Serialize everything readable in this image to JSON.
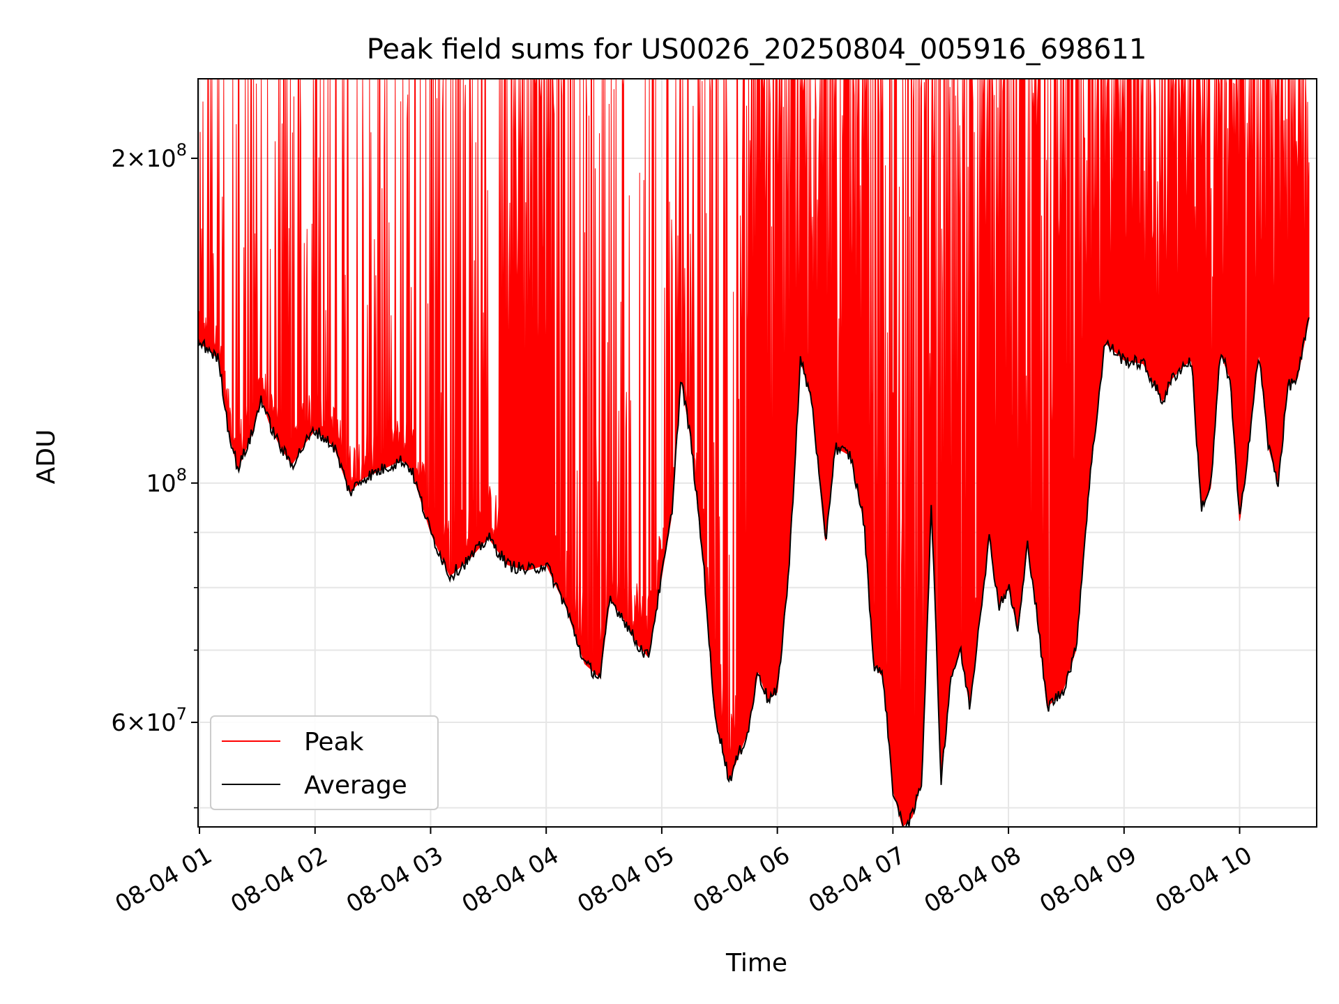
{
  "chart_data": {
    "type": "line",
    "title": "Peak field sums for US0026_20250804_005916_698611",
    "xlabel": "Time",
    "ylabel": "ADU",
    "yscale": "log",
    "ylim": [
      48000000,
      237000000
    ],
    "xlim": [
      "2025-08-04 00:59:16",
      "2025-08-04 10:40:00"
    ],
    "grid": true,
    "legend": {
      "placement": "lower-left"
    },
    "x_ticks": [
      {
        "label": "08-04 01",
        "time": "2025-08-04 01:00"
      },
      {
        "label": "08-04 02",
        "time": "2025-08-04 02:00"
      },
      {
        "label": "08-04 03",
        "time": "2025-08-04 03:00"
      },
      {
        "label": "08-04 04",
        "time": "2025-08-04 04:00"
      },
      {
        "label": "08-04 05",
        "time": "2025-08-04 05:00"
      },
      {
        "label": "08-04 06",
        "time": "2025-08-04 06:00"
      },
      {
        "label": "08-04 07",
        "time": "2025-08-04 07:00"
      },
      {
        "label": "08-04 08",
        "time": "2025-08-04 08:00"
      },
      {
        "label": "08-04 09",
        "time": "2025-08-04 09:00"
      },
      {
        "label": "08-04 10",
        "time": "2025-08-04 10:00"
      }
    ],
    "y_ticks": [
      {
        "value": 60000000,
        "mantissa": "6",
        "exponent": "7"
      },
      {
        "value": 100000000,
        "mantissa": "",
        "exponent": "8"
      },
      {
        "value": 200000000,
        "mantissa": "2",
        "exponent": "8"
      }
    ],
    "y_minor_ticks": [
      50000000,
      70000000,
      80000000,
      90000000,
      300000000
    ],
    "series": [
      {
        "name": "Peak",
        "color": "#ff0000",
        "note_values": "envelope of the peak trace: rises from the average to the plot top (clipped near 2.37e8) in dense spikes",
        "x": [
          "2025-08-04 01:00",
          "2025-08-04 01:15",
          "2025-08-04 01:30",
          "2025-08-04 01:45",
          "2025-08-04 02:00",
          "2025-08-04 02:30",
          "2025-08-04 03:00",
          "2025-08-04 03:30",
          "2025-08-04 04:00",
          "2025-08-04 04:30",
          "2025-08-04 05:00",
          "2025-08-04 05:30",
          "2025-08-04 06:00",
          "2025-08-04 06:30",
          "2025-08-04 07:00",
          "2025-08-04 07:30",
          "2025-08-04 08:00",
          "2025-08-04 08:30",
          "2025-08-04 09:00",
          "2025-08-04 09:30",
          "2025-08-04 10:00",
          "2025-08-04 10:30"
        ],
        "values": [
          237000000,
          237000000,
          237000000,
          210000000,
          237000000,
          215000000,
          237000000,
          237000000,
          237000000,
          220000000,
          237000000,
          237000000,
          237000000,
          237000000,
          237000000,
          237000000,
          237000000,
          237000000,
          237000000,
          237000000,
          237000000,
          237000000
        ]
      },
      {
        "name": "Average",
        "color": "#000000",
        "x": [
          "2025-08-04 00:59:16",
          "2025-08-04 01:05",
          "2025-08-04 01:10",
          "2025-08-04 01:15",
          "2025-08-04 01:20",
          "2025-08-04 01:28",
          "2025-08-04 01:32",
          "2025-08-04 01:36",
          "2025-08-04 01:42",
          "2025-08-04 01:48",
          "2025-08-04 01:55",
          "2025-08-04 02:00",
          "2025-08-04 02:10",
          "2025-08-04 02:18",
          "2025-08-04 02:25",
          "2025-08-04 02:35",
          "2025-08-04 02:45",
          "2025-08-04 02:50",
          "2025-08-04 03:00",
          "2025-08-04 03:10",
          "2025-08-04 03:20",
          "2025-08-04 03:30",
          "2025-08-04 03:40",
          "2025-08-04 03:50",
          "2025-08-04 04:00",
          "2025-08-04 04:10",
          "2025-08-04 04:20",
          "2025-08-04 04:28",
          "2025-08-04 04:33",
          "2025-08-04 04:40",
          "2025-08-04 04:47",
          "2025-08-04 04:53",
          "2025-08-04 05:00",
          "2025-08-04 05:05",
          "2025-08-04 05:10",
          "2025-08-04 05:15",
          "2025-08-04 05:22",
          "2025-08-04 05:27",
          "2025-08-04 05:35",
          "2025-08-04 05:40",
          "2025-08-04 05:45",
          "2025-08-04 05:50",
          "2025-08-04 05:55",
          "2025-08-04 06:00",
          "2025-08-04 06:06",
          "2025-08-04 06:12",
          "2025-08-04 06:18",
          "2025-08-04 06:25",
          "2025-08-04 06:30",
          "2025-08-04 06:38",
          "2025-08-04 06:45",
          "2025-08-04 06:50",
          "2025-08-04 06:55",
          "2025-08-04 07:00",
          "2025-08-04 07:05",
          "2025-08-04 07:10",
          "2025-08-04 07:15",
          "2025-08-04 07:20",
          "2025-08-04 07:25",
          "2025-08-04 07:30",
          "2025-08-04 07:35",
          "2025-08-04 07:40",
          "2025-08-04 07:45",
          "2025-08-04 07:50",
          "2025-08-04 07:55",
          "2025-08-04 08:00",
          "2025-08-04 08:05",
          "2025-08-04 08:10",
          "2025-08-04 08:15",
          "2025-08-04 08:20",
          "2025-08-04 08:28",
          "2025-08-04 08:35",
          "2025-08-04 08:42",
          "2025-08-04 08:50",
          "2025-08-04 09:00",
          "2025-08-04 09:10",
          "2025-08-04 09:15",
          "2025-08-04 09:20",
          "2025-08-04 09:25",
          "2025-08-04 09:30",
          "2025-08-04 09:35",
          "2025-08-04 09:40",
          "2025-08-04 09:45",
          "2025-08-04 09:50",
          "2025-08-04 09:55",
          "2025-08-04 10:00",
          "2025-08-04 10:05",
          "2025-08-04 10:10",
          "2025-08-04 10:15",
          "2025-08-04 10:20",
          "2025-08-04 10:25",
          "2025-08-04 10:30",
          "2025-08-04 10:36"
        ],
        "values": [
          135000000,
          133000000,
          130000000,
          112000000,
          103000000,
          112000000,
          120000000,
          114000000,
          108000000,
          104000000,
          109000000,
          112000000,
          108000000,
          98000000,
          101000000,
          103000000,
          105000000,
          103000000,
          90000000,
          82000000,
          85000000,
          89000000,
          84000000,
          83000000,
          84000000,
          77000000,
          68000000,
          66000000,
          78000000,
          75000000,
          71000000,
          69000000,
          82000000,
          93000000,
          125000000,
          110000000,
          83000000,
          62000000,
          53000000,
          56000000,
          59000000,
          67000000,
          63000000,
          64000000,
          83000000,
          130000000,
          119000000,
          88000000,
          108000000,
          106000000,
          92000000,
          68000000,
          66000000,
          52000000,
          48000000,
          49000000,
          53000000,
          96000000,
          53000000,
          66000000,
          70000000,
          62000000,
          75000000,
          89000000,
          77000000,
          80000000,
          73000000,
          88000000,
          75000000,
          62000000,
          64000000,
          70000000,
          100000000,
          135000000,
          130000000,
          129000000,
          124000000,
          119000000,
          125000000,
          128000000,
          130000000,
          95000000,
          99000000,
          132000000,
          125000000,
          92000000,
          110000000,
          132000000,
          108000000,
          100000000,
          123000000,
          125000000,
          142000000
        ]
      }
    ]
  }
}
